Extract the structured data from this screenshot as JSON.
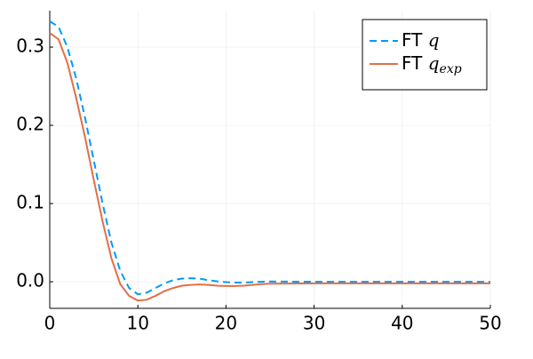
{
  "chart_data": {
    "type": "line",
    "x": [
      0,
      1,
      2,
      3,
      4,
      5,
      6,
      7,
      8,
      9,
      10,
      11,
      12,
      13,
      14,
      15,
      16,
      17,
      18,
      19,
      20,
      21,
      22,
      23,
      24,
      25,
      30,
      35,
      40,
      45,
      50
    ],
    "series": [
      {
        "name": "FT q",
        "color": "#009af9",
        "dash": true,
        "values": [
          0.333,
          0.326,
          0.3,
          0.26,
          0.21,
          0.155,
          0.1,
          0.05,
          0.014,
          -0.008,
          -0.016,
          -0.014,
          -0.008,
          -0.002,
          0.002,
          0.004,
          0.0045,
          0.004,
          0.002,
          0.0005,
          -0.0005,
          -0.001,
          -0.001,
          -0.0005,
          0,
          0.0003,
          0,
          0,
          0,
          0,
          0
        ]
      },
      {
        "name": "FT q_exp",
        "color": "#e26f46",
        "dash": false,
        "values": [
          0.318,
          0.31,
          0.28,
          0.235,
          0.185,
          0.13,
          0.077,
          0.03,
          -0.003,
          -0.018,
          -0.024,
          -0.023,
          -0.018,
          -0.012,
          -0.008,
          -0.005,
          -0.004,
          -0.0035,
          -0.004,
          -0.005,
          -0.0055,
          -0.0055,
          -0.005,
          -0.004,
          -0.003,
          -0.0025,
          -0.002,
          -0.002,
          -0.002,
          -0.002,
          -0.002
        ]
      }
    ],
    "xlim": [
      0,
      50
    ],
    "xticks": [
      0,
      10,
      20,
      30,
      40,
      50
    ],
    "ylim": [
      -0.034,
      0.3466
    ],
    "yticks": [
      {
        "value": 0,
        "label": "0.0"
      },
      0.1,
      0.2,
      0.3
    ],
    "grid": true,
    "legend": "top-right"
  }
}
